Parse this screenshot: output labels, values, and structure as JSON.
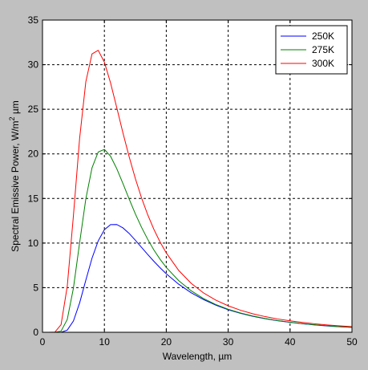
{
  "chart_data": {
    "type": "line",
    "xlabel": "Wavelength, µm",
    "ylabel": "Spectral Emissive Power, W/m",
    "ylabel_sup": "2",
    "ylabel_tail": " µm",
    "xlim": [
      0,
      50
    ],
    "ylim": [
      0,
      35
    ],
    "xticks": [
      0,
      10,
      20,
      30,
      40,
      50
    ],
    "yticks": [
      0,
      5,
      10,
      15,
      20,
      25,
      30,
      35
    ],
    "grid": true,
    "legend_position": "top-right",
    "x": [
      0,
      1,
      2,
      3,
      4,
      5,
      6,
      7,
      8,
      9,
      10,
      11,
      12,
      13,
      14,
      15,
      16,
      17,
      18,
      19,
      20,
      22,
      24,
      26,
      28,
      30,
      32,
      34,
      36,
      38,
      40,
      42,
      44,
      46,
      48,
      50
    ],
    "series": [
      {
        "name": "250K",
        "color": "#0000ff",
        "values": [
          0,
          0,
          0.0,
          0.0,
          0.24,
          1.27,
          3.29,
          5.84,
          8.3,
          10.24,
          11.5,
          12.07,
          12.08,
          11.7,
          11.08,
          10.32,
          9.52,
          8.72,
          7.95,
          7.23,
          6.56,
          5.39,
          4.44,
          3.67,
          3.04,
          2.53,
          2.12,
          1.79,
          1.52,
          1.29,
          1.11,
          0.95,
          0.82,
          0.71,
          0.62,
          0.55
        ]
      },
      {
        "name": "275K",
        "color": "#008000",
        "values": [
          0,
          0,
          0.0,
          0.13,
          1.43,
          4.96,
          10.04,
          14.94,
          18.43,
          20.21,
          20.5,
          19.73,
          18.34,
          16.67,
          14.94,
          13.28,
          11.77,
          10.42,
          9.22,
          8.18,
          7.27,
          5.79,
          4.66,
          3.79,
          3.11,
          2.58,
          2.16,
          1.82,
          1.54,
          1.31,
          1.13,
          0.97,
          0.84,
          0.73,
          0.63,
          0.56
        ]
      },
      {
        "name": "300K",
        "color": "#ff0000",
        "values": [
          0,
          0,
          0.02,
          0.85,
          5.14,
          13.09,
          21.74,
          28.08,
          31.2,
          31.61,
          30.28,
          27.95,
          25.18,
          22.35,
          19.68,
          17.24,
          15.07,
          13.17,
          11.53,
          10.11,
          8.9,
          6.94,
          5.5,
          4.42,
          3.6,
          2.97,
          2.47,
          2.07,
          1.75,
          1.49,
          1.28,
          1.1,
          0.95,
          0.82,
          0.72,
          0.63
        ]
      }
    ]
  }
}
